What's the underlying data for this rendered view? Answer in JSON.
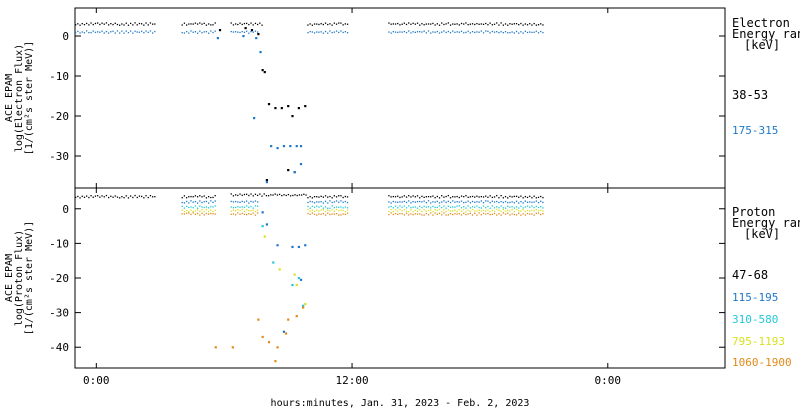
{
  "chart_data": [
    {
      "type": "scatter",
      "panel": "electron",
      "ylabel": [
        "ACE EPAM",
        "log(Electron Flux)",
        "[1/(cm²s ster MeV)]"
      ],
      "ylim": [
        -38,
        7
      ],
      "yticks": [
        0,
        -10,
        -20,
        -30
      ],
      "legend_title": [
        "Electron",
        "Energy ranges",
        "[keV]"
      ],
      "series": [
        {
          "name": "38-53",
          "color": "#000000",
          "segments": [
            {
              "x0": -1.0,
              "x1": 2.8,
              "y": 3.0
            },
            {
              "x0": 4.0,
              "x1": 5.6,
              "y": 3.0
            },
            {
              "x0": 6.3,
              "x1": 7.8,
              "y": 3.0
            },
            {
              "x0": 9.9,
              "x1": 11.8,
              "y": 3.0
            },
            {
              "x0": 13.7,
              "x1": 21.0,
              "y": 3.0
            }
          ],
          "points": [
            [
              5.8,
              1.5
            ],
            [
              7.0,
              2.0
            ],
            [
              7.3,
              1.5
            ],
            [
              7.6,
              0.5
            ],
            [
              7.8,
              -8.5
            ],
            [
              7.9,
              -9.0
            ],
            [
              8.1,
              -17.0
            ],
            [
              8.4,
              -18.0
            ],
            [
              8.7,
              -18.0
            ],
            [
              9.0,
              -17.5
            ],
            [
              9.2,
              -20.0
            ],
            [
              9.5,
              -18.0
            ],
            [
              9.8,
              -17.5
            ],
            [
              9.0,
              -33.5
            ],
            [
              9.3,
              -34.0
            ],
            [
              8.0,
              -36.0
            ]
          ]
        },
        {
          "name": "175-315",
          "color": "#1f78c8",
          "segments": [
            {
              "x0": -1.0,
              "x1": 2.8,
              "y": 1.0
            },
            {
              "x0": 4.0,
              "x1": 5.6,
              "y": 1.0
            },
            {
              "x0": 6.3,
              "x1": 7.6,
              "y": 1.0
            },
            {
              "x0": 9.9,
              "x1": 11.8,
              "y": 1.0
            },
            {
              "x0": 13.7,
              "x1": 21.0,
              "y": 1.0
            }
          ],
          "points": [
            [
              5.7,
              -0.5
            ],
            [
              6.9,
              0.0
            ],
            [
              7.5,
              -0.5
            ],
            [
              7.7,
              -4.0
            ],
            [
              7.4,
              -20.5
            ],
            [
              8.2,
              -27.5
            ],
            [
              8.5,
              -28.0
            ],
            [
              8.8,
              -27.5
            ],
            [
              9.1,
              -27.5
            ],
            [
              9.4,
              -27.5
            ],
            [
              9.6,
              -27.5
            ],
            [
              9.6,
              -32.0
            ],
            [
              9.3,
              -34.0
            ],
            [
              8.0,
              -36.5
            ]
          ]
        }
      ]
    },
    {
      "type": "scatter",
      "panel": "proton",
      "ylabel": [
        "ACE EPAM",
        "log(Proton Flux)",
        "[1/(cm²s ster MeV)]"
      ],
      "ylim": [
        -46,
        6
      ],
      "yticks": [
        0,
        -10,
        -20,
        -30,
        -40
      ],
      "legend_title": [
        "Proton",
        "Energy ranges",
        "[keV]"
      ],
      "series": [
        {
          "name": "47-68",
          "color": "#000000",
          "segments": [
            {
              "x0": -1.0,
              "x1": 2.8,
              "y": 3.5
            },
            {
              "x0": 4.0,
              "x1": 5.6,
              "y": 3.5
            },
            {
              "x0": 6.3,
              "x1": 9.9,
              "y": 4.0
            },
            {
              "x0": 9.9,
              "x1": 11.8,
              "y": 3.5
            },
            {
              "x0": 13.7,
              "x1": 21.0,
              "y": 3.5
            }
          ],
          "points": []
        },
        {
          "name": "115-195",
          "color": "#1f78c8",
          "segments": [
            {
              "x0": 4.0,
              "x1": 5.6,
              "y": 2.0
            },
            {
              "x0": 6.3,
              "x1": 7.6,
              "y": 2.0
            },
            {
              "x0": 9.9,
              "x1": 11.8,
              "y": 2.0
            },
            {
              "x0": 13.7,
              "x1": 21.0,
              "y": 2.0
            }
          ],
          "points": [
            [
              7.8,
              -1.0
            ],
            [
              8.0,
              -4.5
            ],
            [
              8.5,
              -10.5
            ],
            [
              9.2,
              -11.0
            ],
            [
              9.5,
              -11.0
            ],
            [
              9.8,
              -10.5
            ],
            [
              9.6,
              -20.5
            ],
            [
              8.8,
              -35.5
            ]
          ]
        },
        {
          "name": "310-580",
          "color": "#22c8d8",
          "segments": [
            {
              "x0": 4.0,
              "x1": 5.6,
              "y": 0.5
            },
            {
              "x0": 6.3,
              "x1": 7.6,
              "y": 0.5
            },
            {
              "x0": 9.9,
              "x1": 11.8,
              "y": 0.5
            },
            {
              "x0": 13.7,
              "x1": 21.0,
              "y": 0.5
            }
          ],
          "points": [
            [
              7.8,
              -5.0
            ],
            [
              8.3,
              -15.5
            ],
            [
              9.2,
              -22.0
            ],
            [
              9.5,
              -20.0
            ],
            [
              9.7,
              -28.0
            ]
          ]
        },
        {
          "name": "795-1193",
          "color": "#d8e020",
          "segments": [
            {
              "x0": 4.0,
              "x1": 5.6,
              "y": -0.5
            },
            {
              "x0": 6.3,
              "x1": 7.6,
              "y": -0.5
            },
            {
              "x0": 9.9,
              "x1": 11.8,
              "y": -0.5
            },
            {
              "x0": 13.7,
              "x1": 21.0,
              "y": -0.5
            }
          ],
          "points": [
            [
              7.9,
              -8.0
            ],
            [
              8.6,
              -17.5
            ],
            [
              9.3,
              -19.0
            ],
            [
              9.4,
              -22.0
            ],
            [
              9.8,
              -27.5
            ]
          ]
        },
        {
          "name": "1060-1900",
          "color": "#e08a1a",
          "segments": [
            {
              "x0": 4.0,
              "x1": 5.6,
              "y": -1.5
            },
            {
              "x0": 6.3,
              "x1": 7.6,
              "y": -1.5
            },
            {
              "x0": 9.9,
              "x1": 11.8,
              "y": -1.5
            },
            {
              "x0": 13.7,
              "x1": 21.0,
              "y": -1.5
            }
          ],
          "points": [
            [
              5.6,
              -40.0
            ],
            [
              6.4,
              -40.0
            ],
            [
              7.6,
              -32.0
            ],
            [
              7.8,
              -37.0
            ],
            [
              8.1,
              -38.5
            ],
            [
              8.5,
              -40.0
            ],
            [
              9.0,
              -32.0
            ],
            [
              9.4,
              -31.0
            ],
            [
              9.7,
              -28.5
            ],
            [
              8.9,
              -36.0
            ],
            [
              8.4,
              -44.0
            ]
          ]
        }
      ]
    }
  ],
  "x_axis": {
    "range_hours": [
      -1.0,
      29.5
    ],
    "ticks": [
      {
        "hour": 0,
        "label": "0:00"
      },
      {
        "hour": 12,
        "label": "12:00"
      },
      {
        "hour": 24,
        "label": "0:00"
      }
    ],
    "xlabel": "hours:minutes, Jan. 31, 2023 - Feb.  2, 2023"
  }
}
